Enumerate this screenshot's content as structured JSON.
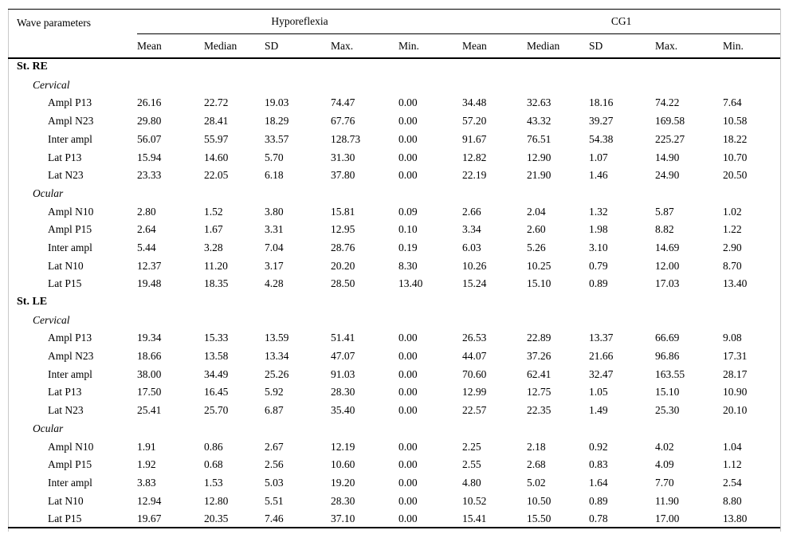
{
  "table": {
    "col1_header": "Wave parameters",
    "groups": [
      {
        "label": "Hyporeflexia"
      },
      {
        "label": "CG1"
      }
    ],
    "subheaders": [
      "Mean",
      "Median",
      "SD",
      "Max.",
      "Min.",
      "Mean",
      "Median",
      "SD",
      "Max.",
      "Min."
    ],
    "sections": [
      {
        "title": "St. RE",
        "subsections": [
          {
            "title": "Cervical",
            "rows": [
              {
                "label": "Ampl P13",
                "values": [
                  "26.16",
                  "22.72",
                  "19.03",
                  "74.47",
                  "0.00",
                  "34.48",
                  "32.63",
                  "18.16",
                  "74.22",
                  "7.64"
                ]
              },
              {
                "label": "Ampl N23",
                "values": [
                  "29.80",
                  "28.41",
                  "18.29",
                  "67.76",
                  "0.00",
                  "57.20",
                  "43.32",
                  "39.27",
                  "169.58",
                  "10.58"
                ]
              },
              {
                "label": "Inter ampl",
                "values": [
                  "56.07",
                  "55.97",
                  "33.57",
                  "128.73",
                  "0.00",
                  "91.67",
                  "76.51",
                  "54.38",
                  "225.27",
                  "18.22"
                ]
              },
              {
                "label": "Lat P13",
                "values": [
                  "15.94",
                  "14.60",
                  "5.70",
                  "31.30",
                  "0.00",
                  "12.82",
                  "12.90",
                  "1.07",
                  "14.90",
                  "10.70"
                ]
              },
              {
                "label": "Lat N23",
                "values": [
                  "23.33",
                  "22.05",
                  "6.18",
                  "37.80",
                  "0.00",
                  "22.19",
                  "21.90",
                  "1.46",
                  "24.90",
                  "20.50"
                ]
              }
            ]
          },
          {
            "title": "Ocular",
            "rows": [
              {
                "label": "Ampl N10",
                "values": [
                  "2.80",
                  "1.52",
                  "3.80",
                  "15.81",
                  "0.09",
                  "2.66",
                  "2.04",
                  "1.32",
                  "5.87",
                  "1.02"
                ]
              },
              {
                "label": "Ampl P15",
                "values": [
                  "2.64",
                  "1.67",
                  "3.31",
                  "12.95",
                  "0.10",
                  "3.34",
                  "2.60",
                  "1.98",
                  "8.82",
                  "1.22"
                ]
              },
              {
                "label": "Inter ampl",
                "values": [
                  "5.44",
                  "3.28",
                  "7.04",
                  "28.76",
                  "0.19",
                  "6.03",
                  "5.26",
                  "3.10",
                  "14.69",
                  "2.90"
                ]
              },
              {
                "label": "Lat N10",
                "values": [
                  "12.37",
                  "11.20",
                  "3.17",
                  "20.20",
                  "8.30",
                  "10.26",
                  "10.25",
                  "0.79",
                  "12.00",
                  "8.70"
                ]
              },
              {
                "label": "Lat P15",
                "values": [
                  "19.48",
                  "18.35",
                  "4.28",
                  "28.50",
                  "13.40",
                  "15.24",
                  "15.10",
                  "0.89",
                  "17.03",
                  "13.40"
                ]
              }
            ]
          }
        ]
      },
      {
        "title": "St. LE",
        "subsections": [
          {
            "title": "Cervical",
            "rows": [
              {
                "label": "Ampl P13",
                "values": [
                  "19.34",
                  "15.33",
                  "13.59",
                  "51.41",
                  "0.00",
                  "26.53",
                  "22.89",
                  "13.37",
                  "66.69",
                  "9.08"
                ]
              },
              {
                "label": "Ampl N23",
                "values": [
                  "18.66",
                  "13.58",
                  "13.34",
                  "47.07",
                  "0.00",
                  "44.07",
                  "37.26",
                  "21.66",
                  "96.86",
                  "17.31"
                ]
              },
              {
                "label": "Inter ampl",
                "values": [
                  "38.00",
                  "34.49",
                  "25.26",
                  "91.03",
                  "0.00",
                  "70.60",
                  "62.41",
                  "32.47",
                  "163.55",
                  "28.17"
                ]
              },
              {
                "label": "Lat P13",
                "values": [
                  "17.50",
                  "16.45",
                  "5.92",
                  "28.30",
                  "0.00",
                  "12.99",
                  "12.75",
                  "1.05",
                  "15.10",
                  "10.90"
                ]
              },
              {
                "label": "Lat N23",
                "values": [
                  "25.41",
                  "25.70",
                  "6.87",
                  "35.40",
                  "0.00",
                  "22.57",
                  "22.35",
                  "1.49",
                  "25.30",
                  "20.10"
                ]
              }
            ]
          },
          {
            "title": "Ocular",
            "rows": [
              {
                "label": "Ampl N10",
                "values": [
                  "1.91",
                  "0.86",
                  "2.67",
                  "12.19",
                  "0.00",
                  "2.25",
                  "2.18",
                  "0.92",
                  "4.02",
                  "1.04"
                ]
              },
              {
                "label": "Ampl P15",
                "values": [
                  "1.92",
                  "0.68",
                  "2.56",
                  "10.60",
                  "0.00",
                  "2.55",
                  "2.68",
                  "0.83",
                  "4.09",
                  "1.12"
                ]
              },
              {
                "label": "Inter ampl",
                "values": [
                  "3.83",
                  "1.53",
                  "5.03",
                  "19.20",
                  "0.00",
                  "4.80",
                  "5.02",
                  "1.64",
                  "7.70",
                  "2.54"
                ]
              },
              {
                "label": "Lat N10",
                "values": [
                  "12.94",
                  "12.80",
                  "5.51",
                  "28.30",
                  "0.00",
                  "10.52",
                  "10.50",
                  "0.89",
                  "11.90",
                  "8.80"
                ]
              },
              {
                "label": "Lat P15",
                "values": [
                  "19.67",
                  "20.35",
                  "7.46",
                  "37.10",
                  "0.00",
                  "15.41",
                  "15.50",
                  "0.78",
                  "17.00",
                  "13.80"
                ]
              }
            ]
          }
        ]
      }
    ]
  },
  "colors": {
    "rule": "#000000",
    "side_border": "#c9c9c9",
    "text": "#000000",
    "background": "#ffffff"
  }
}
